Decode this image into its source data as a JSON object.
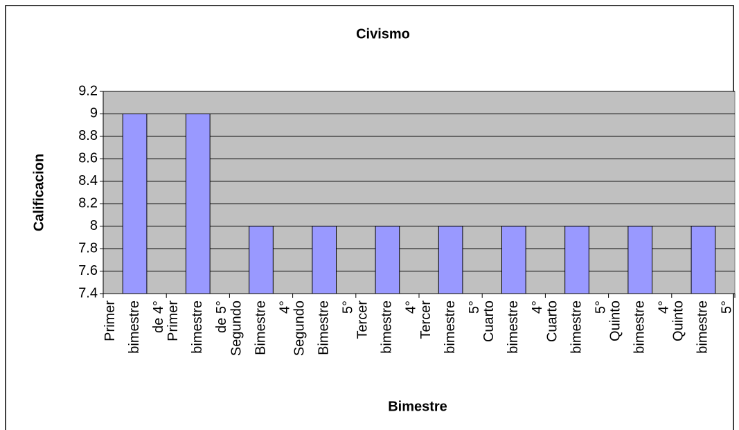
{
  "chart_data": {
    "type": "bar",
    "title": "Civismo",
    "xlabel": "Bimestre",
    "ylabel": "Calificacion",
    "categories": [
      [
        "Primer",
        "bimestre",
        "de 4°"
      ],
      [
        "Primer",
        "bimestre",
        "de 5°"
      ],
      [
        "Segundo",
        "Bimestre",
        "4°"
      ],
      [
        "Segundo",
        "Bimestre",
        "5°"
      ],
      [
        "Tercer",
        "bimestre",
        "4°"
      ],
      [
        "Tercer",
        "bimestre",
        "5°"
      ],
      [
        "Cuarto",
        "bimestre",
        "4°"
      ],
      [
        "Cuarto",
        "bimestre",
        "5°"
      ],
      [
        "Quinto",
        "bimestre",
        "4°"
      ],
      [
        "Quinto",
        "bimestre",
        "5°"
      ]
    ],
    "values": [
      9,
      9,
      8,
      8,
      8,
      8,
      8,
      8,
      8,
      8
    ],
    "color": "#9999ff",
    "plot_background": "#c0c0c0",
    "ylim": [
      7.4,
      9.2
    ],
    "yticks": [
      7.4,
      7.6,
      7.8,
      8,
      8.2,
      8.4,
      8.6,
      8.8,
      9,
      9.2
    ],
    "grid": true
  }
}
